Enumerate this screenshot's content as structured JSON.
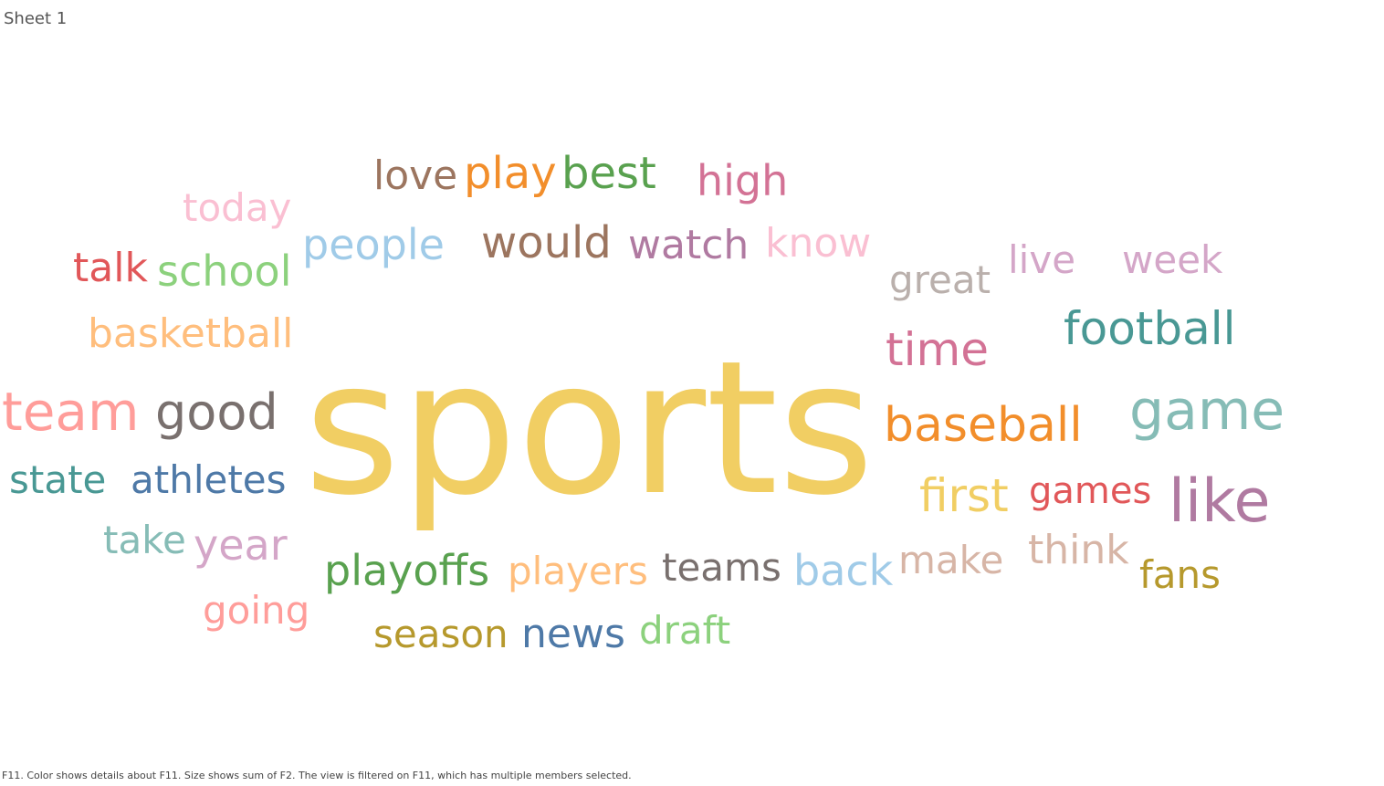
{
  "sheet": {
    "title": "Sheet 1"
  },
  "caption": "F11.  Color shows details about F11.  Size shows sum of F2. The view is filtered on F11, which has multiple members selected.",
  "chart_data": {
    "type": "wordcloud",
    "encoding": {
      "color": "F11",
      "size": "sum of F2"
    },
    "words": [
      {
        "text": "sports",
        "weight": 100,
        "color": "#f1ce63"
      },
      {
        "text": "game",
        "weight": 30,
        "color": "#86bcb6"
      },
      {
        "text": "like",
        "weight": 30,
        "color": "#b07aa1"
      },
      {
        "text": "team",
        "weight": 28,
        "color": "#ff9d9a"
      },
      {
        "text": "good",
        "weight": 26,
        "color": "#79706e"
      },
      {
        "text": "baseball",
        "weight": 24,
        "color": "#f28e2b"
      },
      {
        "text": "football",
        "weight": 24,
        "color": "#499894"
      },
      {
        "text": "would",
        "weight": 22,
        "color": "#9c755f"
      },
      {
        "text": "play",
        "weight": 22,
        "color": "#f28e2b"
      },
      {
        "text": "best",
        "weight": 22,
        "color": "#59a14f"
      },
      {
        "text": "people",
        "weight": 22,
        "color": "#a0cbe8"
      },
      {
        "text": "time",
        "weight": 22,
        "color": "#d37295"
      },
      {
        "text": "school",
        "weight": 22,
        "color": "#8cd17d"
      },
      {
        "text": "first",
        "weight": 22,
        "color": "#f1ce63"
      },
      {
        "text": "playoffs",
        "weight": 21,
        "color": "#59a14f"
      },
      {
        "text": "watch",
        "weight": 21,
        "color": "#b07aa1"
      },
      {
        "text": "love",
        "weight": 21,
        "color": "#9c755f"
      },
      {
        "text": "year",
        "weight": 21,
        "color": "#d4a6c8"
      },
      {
        "text": "back",
        "weight": 21,
        "color": "#a0cbe8"
      },
      {
        "text": "news",
        "weight": 21,
        "color": "#4e79a7"
      },
      {
        "text": "talk",
        "weight": 20,
        "color": "#e15759"
      },
      {
        "text": "state",
        "weight": 20,
        "color": "#499894"
      },
      {
        "text": "athletes",
        "weight": 20,
        "color": "#4e79a7"
      },
      {
        "text": "high",
        "weight": 20,
        "color": "#d37295"
      },
      {
        "text": "know",
        "weight": 20,
        "color": "#fabfd2"
      },
      {
        "text": "great",
        "weight": 20,
        "color": "#bab0ac"
      },
      {
        "text": "think",
        "weight": 20,
        "color": "#d7b5a6"
      },
      {
        "text": "basketball",
        "weight": 19,
        "color": "#ffbe7d"
      },
      {
        "text": "players",
        "weight": 19,
        "color": "#ffbe7d"
      },
      {
        "text": "teams",
        "weight": 19,
        "color": "#79706e"
      },
      {
        "text": "games",
        "weight": 19,
        "color": "#e15759"
      },
      {
        "text": "make",
        "weight": 19,
        "color": "#d7b5a6"
      },
      {
        "text": "season",
        "weight": 19,
        "color": "#b6992d"
      },
      {
        "text": "draft",
        "weight": 19,
        "color": "#8cd17d"
      },
      {
        "text": "today",
        "weight": 19,
        "color": "#fabfd2"
      },
      {
        "text": "take",
        "weight": 19,
        "color": "#86bcb6"
      },
      {
        "text": "going",
        "weight": 19,
        "color": "#ff9d9a"
      },
      {
        "text": "fans",
        "weight": 18,
        "color": "#b6992d"
      },
      {
        "text": "week",
        "weight": 18,
        "color": "#d4a6c8"
      },
      {
        "text": "live",
        "weight": 18,
        "color": "#d4a6c8"
      }
    ]
  }
}
